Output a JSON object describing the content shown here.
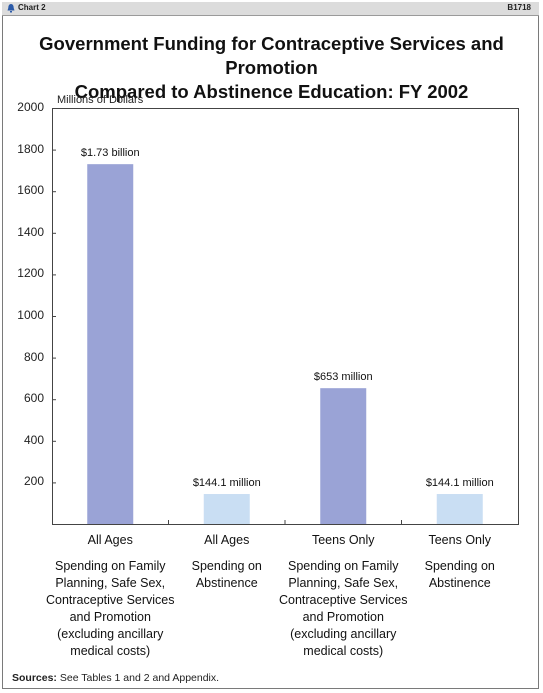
{
  "header": {
    "chart_label": "Chart 2",
    "chart_id": "B1718"
  },
  "title_lines": [
    "Government Funding for Contraceptive Services and Promotion",
    "Compared to Abstinence Education:  FY 2002"
  ],
  "sources": {
    "label": "Sources:",
    "text": "See Tables 1 and 2 and Appendix."
  },
  "colors": {
    "dark_bar": "#9aa3d6",
    "light_bar": "#c9def3",
    "axis": "#444444"
  },
  "chart_data": {
    "type": "bar",
    "ylabel": "Millions of Dollars",
    "ylim": [
      0,
      2000
    ],
    "yticks": [
      200,
      400,
      600,
      800,
      1000,
      1200,
      1400,
      1600,
      1800,
      2000
    ],
    "grid": false,
    "categories": [
      "All Ages",
      "All Ages",
      "Teens Only",
      "Teens Only"
    ],
    "descriptions": [
      [
        "Spending on Family",
        "Planning, Safe Sex,",
        "Contraceptive Services",
        "and Promotion",
        "(excluding ancillary",
        "medical costs)"
      ],
      [
        "Spending on",
        "Abstinence"
      ],
      [
        "Spending on Family",
        "Planning, Safe Sex,",
        "Contraceptive Services",
        "and Promotion",
        "(excluding ancillary",
        "medical costs)"
      ],
      [
        "Spending on",
        "Abstinence"
      ]
    ],
    "values": [
      1730,
      144.1,
      653,
      144.1
    ],
    "value_labels": [
      "$1.73 billion",
      "$144.1 million",
      "$653 million",
      "$144.1 million"
    ],
    "bar_colors": [
      "dark",
      "light",
      "dark",
      "light"
    ]
  }
}
